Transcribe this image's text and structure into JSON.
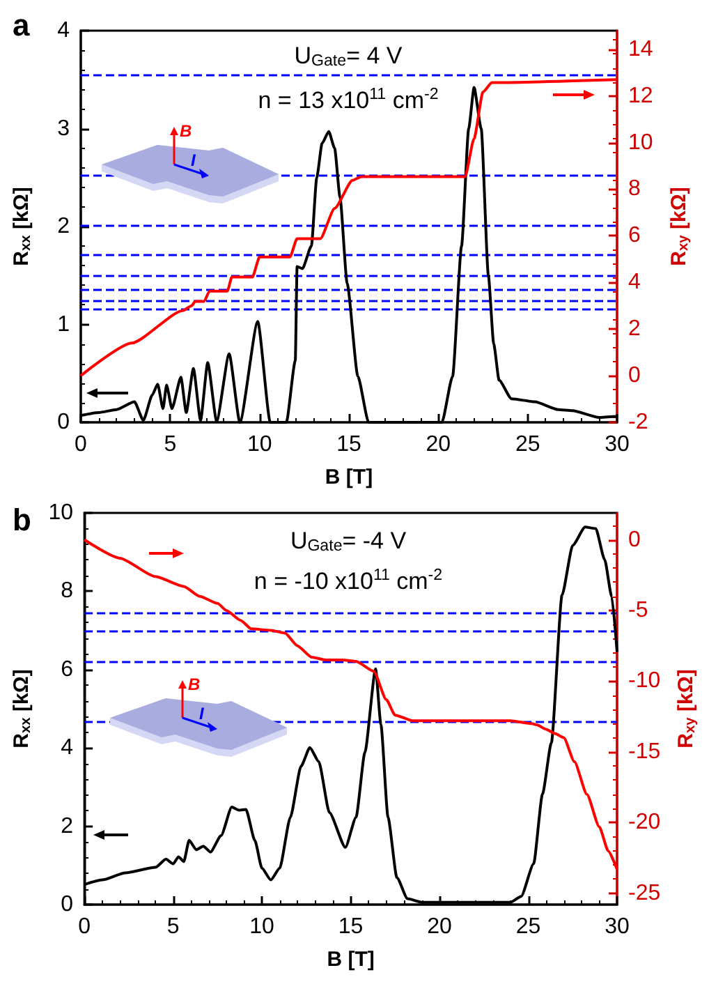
{
  "chart_data": [
    {
      "type": "line",
      "title": "a",
      "xlabel": "B [T]",
      "ylabel": "R$_{xx}$ [kΩ]",
      "y2label": "R$_{xy}$ [kΩ]",
      "annotations": [
        "U$_{Gate}$= 4 V",
        "n = 13 x10$^{11}$ cm$^{-2}$",
        "B",
        "I"
      ],
      "xlim": [
        0,
        30
      ],
      "xticks": [
        0,
        5,
        10,
        15,
        20,
        25,
        30
      ],
      "ylim": [
        0,
        4
      ],
      "yticks": [
        0,
        1,
        2,
        3,
        4
      ],
      "y2lim": [
        -2,
        14.8
      ],
      "y2ticks": [
        -2,
        0,
        2,
        4,
        6,
        8,
        10,
        12,
        14
      ],
      "grid": false,
      "line_style": "solid",
      "ref_lines": [
        {
          "axis": "y2",
          "value": 12.9,
          "color": "#0000ff",
          "line_style": "dashed"
        },
        {
          "axis": "y2",
          "value": 8.6,
          "color": "#0000ff",
          "line_style": "dashed"
        },
        {
          "axis": "y2",
          "value": 6.45,
          "color": "#0000ff",
          "line_style": "dashed"
        },
        {
          "axis": "y2",
          "value": 5.16,
          "color": "#0000ff",
          "line_style": "dashed"
        },
        {
          "axis": "y2",
          "value": 4.3,
          "color": "#0000ff",
          "line_style": "dashed"
        },
        {
          "axis": "y2",
          "value": 3.69,
          "color": "#0000ff",
          "line_style": "dashed"
        },
        {
          "axis": "y2",
          "value": 3.23,
          "color": "#0000ff",
          "line_style": "dashed"
        },
        {
          "axis": "y2",
          "value": 2.87,
          "color": "#0000ff",
          "line_style": "dashed"
        }
      ],
      "series": [
        {
          "color": "#000000",
          "x": [
            0,
            1,
            2,
            3,
            3.5,
            4,
            4.3,
            4.6,
            4.8,
            5.1,
            5.6,
            5.9,
            6.3,
            6.7,
            7.1,
            7.6,
            8.3,
            8.9,
            9.9,
            10.6,
            11.5,
            12.0,
            12.1,
            12.4,
            12.9,
            13.2,
            13.5,
            13.87,
            14.2,
            14.5,
            14.9,
            15.5,
            16.1,
            20.2,
            20.8,
            21.3,
            21.7,
            22.0,
            22.4,
            22.8,
            23.1,
            23.4,
            24.1,
            25.4,
            26.7,
            27.5,
            29,
            30
          ],
          "values": [
            0.07,
            0.1,
            0.13,
            0.21,
            0.02,
            0.28,
            0.39,
            0.14,
            0.38,
            0.14,
            0.46,
            0.1,
            0.55,
            0.02,
            0.61,
            0.01,
            0.7,
            0,
            1.03,
            0,
            0,
            0.63,
            1.59,
            1.57,
            1.8,
            2.5,
            2.85,
            2.97,
            2.8,
            2.3,
            1.42,
            0.47,
            0,
            0,
            0.47,
            1.8,
            3.0,
            3.42,
            3.0,
            1.5,
            0.8,
            0.43,
            0.24,
            0.21,
            0.13,
            0.12,
            0.05,
            0.06
          ]
        },
        {
          "color": "#ff0000",
          "axis": "y2",
          "x": [
            0,
            2.85,
            5.7,
            6.2,
            6.4,
            6.9,
            7.2,
            8.2,
            8.45,
            9.6,
            10.0,
            11.7,
            12.1,
            13.4,
            14.2,
            15.2,
            15.7,
            21.5,
            22.0,
            22.5,
            23.0,
            30
          ],
          "values": [
            0,
            1.4,
            2.79,
            3.0,
            3.19,
            3.19,
            3.63,
            3.63,
            4.23,
            4.23,
            5.09,
            5.09,
            5.88,
            5.88,
            7.18,
            8.38,
            8.54,
            8.54,
            10.17,
            12.17,
            12.57,
            12.7
          ]
        }
      ]
    },
    {
      "type": "line",
      "title": "b",
      "xlabel": "B [T]",
      "ylabel": "R$_{xx}$ [kΩ]",
      "y2label": "R$_{xy}$ [kΩ]",
      "annotations": [
        "U$_{Gate}$= -4 V",
        "n = -10 x10$^{11}$ cm$^{-2}$",
        "B",
        "I"
      ],
      "xlim": [
        0,
        30
      ],
      "xticks": [
        0,
        5,
        10,
        15,
        20,
        25,
        30
      ],
      "ylim": [
        0,
        10
      ],
      "yticks": [
        0,
        2,
        4,
        6,
        8,
        10
      ],
      "y2lim": [
        -25.8,
        1.9
      ],
      "y2ticks": [
        -25,
        -20,
        -15,
        -10,
        -5,
        0
      ],
      "grid": false,
      "line_style": "solid",
      "ref_lines": [
        {
          "axis": "y2",
          "value": -5.16,
          "color": "#0000ff",
          "line_style": "dashed"
        },
        {
          "axis": "y2",
          "value": -6.45,
          "color": "#0000ff",
          "line_style": "dashed"
        },
        {
          "axis": "y2",
          "value": -8.6,
          "color": "#0000ff",
          "line_style": "dashed"
        },
        {
          "axis": "y2",
          "value": -12.9,
          "color": "#0000ff",
          "line_style": "dashed"
        }
      ],
      "series": [
        {
          "color": "#000000",
          "x": [
            0,
            1,
            2.3,
            4,
            4.6,
            5.0,
            5.3,
            5.6,
            5.9,
            6.3,
            6.7,
            7.1,
            7.7,
            8.3,
            8.7,
            9.1,
            9.6,
            10.0,
            10.5,
            11.0,
            11.6,
            12.2,
            12.7,
            13.2,
            13.8,
            14.7,
            15.3,
            15.8,
            16.4,
            16.7,
            17.1,
            17.6,
            18.2,
            19,
            24,
            24.6,
            25.3,
            25.8,
            26.3,
            26.9,
            27.5,
            28.2,
            28.8,
            29.3,
            29.7,
            30
          ],
          "values": [
            0.51,
            0.63,
            0.81,
            0.95,
            1.16,
            1.04,
            1.22,
            1.1,
            1.64,
            1.4,
            1.49,
            1.34,
            1.76,
            2.49,
            2.41,
            2.43,
            1.64,
            0.93,
            0.63,
            0.93,
            2.23,
            3.53,
            4.01,
            3.65,
            2.35,
            1.46,
            2.23,
            3.89,
            6.02,
            4.6,
            2.23,
            0.69,
            0.15,
            0.06,
            0.06,
            0.21,
            1.04,
            2.82,
            4.13,
            7.9,
            9.17,
            9.64,
            9.6,
            8.81,
            7.86,
            6.45
          ]
        },
        {
          "color": "#ff0000",
          "axis": "y2",
          "x": [
            0,
            2,
            4,
            5.6,
            6.5,
            7.5,
            8,
            8.8,
            9.4,
            10.5,
            11.3,
            12.0,
            12.8,
            13.6,
            14.5,
            15.3,
            16.3,
            17,
            17.5,
            18.5,
            20,
            24,
            25.2,
            25.5,
            26.0,
            26.5,
            27.0,
            27.6,
            28.3,
            29.0,
            29.5,
            30
          ],
          "values": [
            0,
            -1.3,
            -2.6,
            -3.3,
            -4.0,
            -4.5,
            -5.0,
            -5.7,
            -6.3,
            -6.4,
            -6.6,
            -7.5,
            -8.3,
            -8.5,
            -8.5,
            -8.6,
            -9.3,
            -11.3,
            -12.4,
            -12.8,
            -12.8,
            -12.8,
            -13.0,
            -13.1,
            -13.4,
            -13.7,
            -14.0,
            -15.7,
            -18.0,
            -20.3,
            -22.0,
            -23.3
          ]
        }
      ]
    }
  ]
}
